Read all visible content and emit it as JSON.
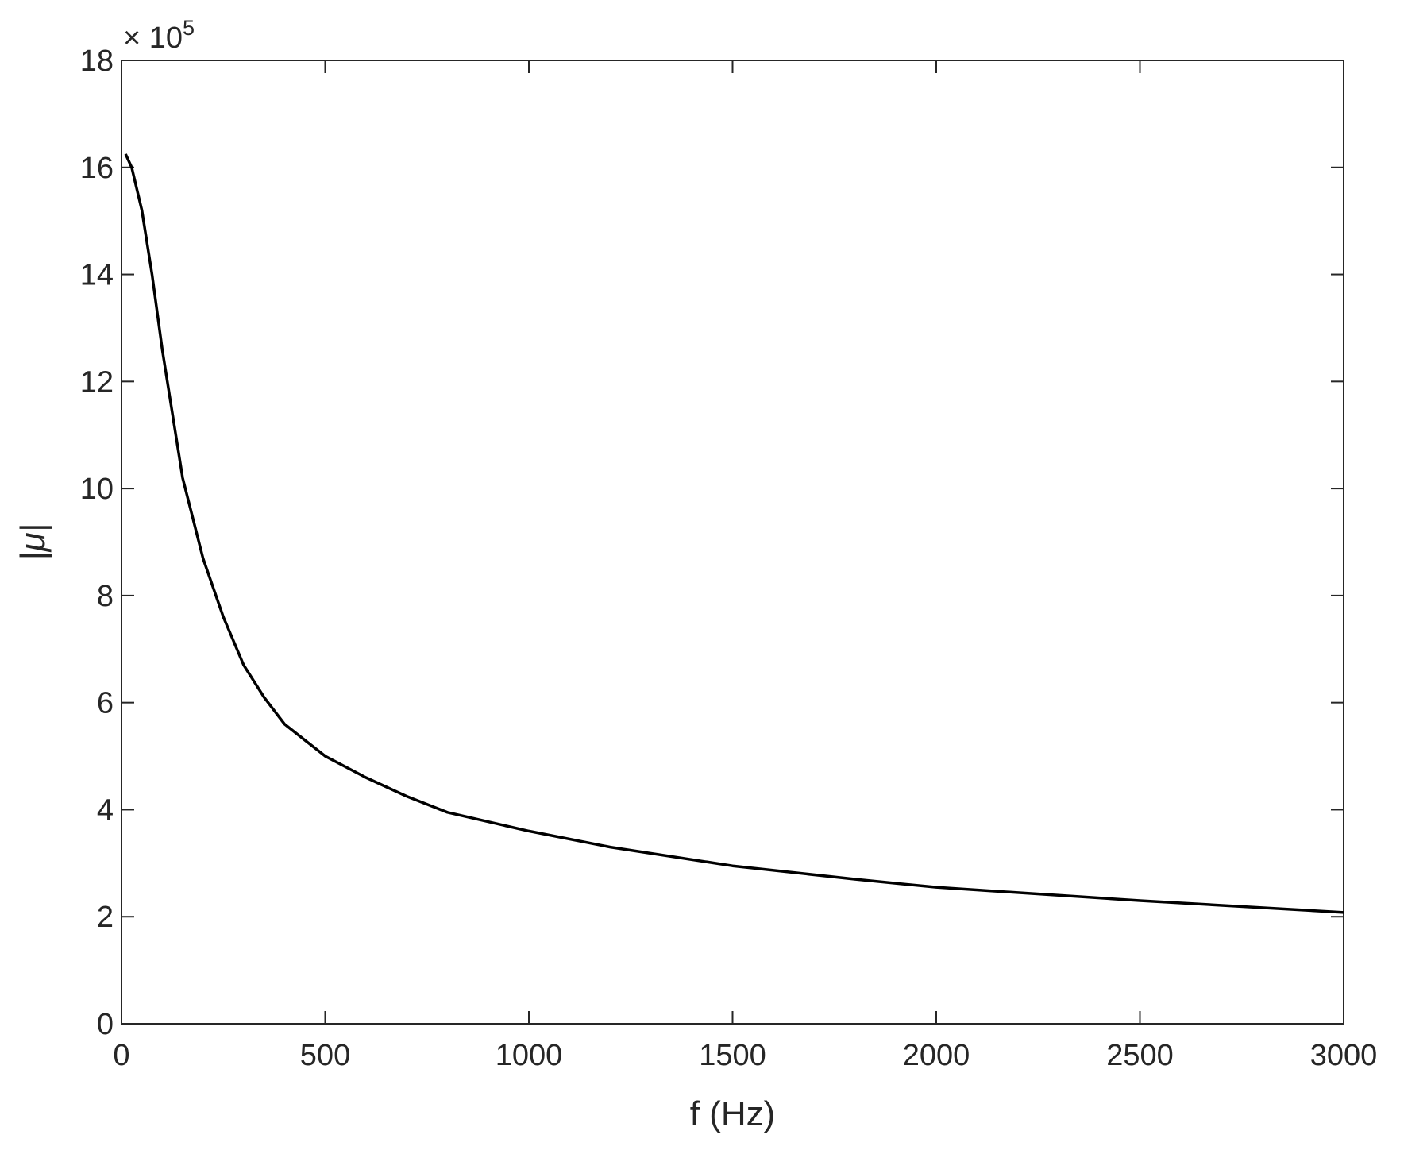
{
  "chart_data": {
    "type": "line",
    "xlabel": "f (Hz)",
    "ylabel": "|μ|",
    "y_scale_prefix": "× 10",
    "y_scale_exponent": "5",
    "x": [
      10,
      25,
      50,
      75,
      100,
      150,
      200,
      250,
      300,
      350,
      400,
      500,
      600,
      700,
      800,
      1000,
      1200,
      1500,
      1800,
      2000,
      2500,
      3000
    ],
    "series": [
      {
        "color": "#000000",
        "values": [
          16.25,
          16.0,
          15.2,
          14.0,
          12.6,
          10.2,
          8.7,
          7.6,
          6.7,
          6.1,
          5.6,
          5.0,
          4.6,
          4.25,
          3.95,
          3.6,
          3.3,
          2.95,
          2.7,
          2.55,
          2.3,
          2.08
        ]
      }
    ],
    "xlim": [
      0,
      3000
    ],
    "xticks": [
      0,
      500,
      1000,
      1500,
      2000,
      2500,
      3000
    ],
    "ylim": [
      0,
      18
    ],
    "yticks": [
      0,
      2,
      4,
      6,
      8,
      10,
      12,
      14,
      16,
      18
    ],
    "grid": false
  }
}
